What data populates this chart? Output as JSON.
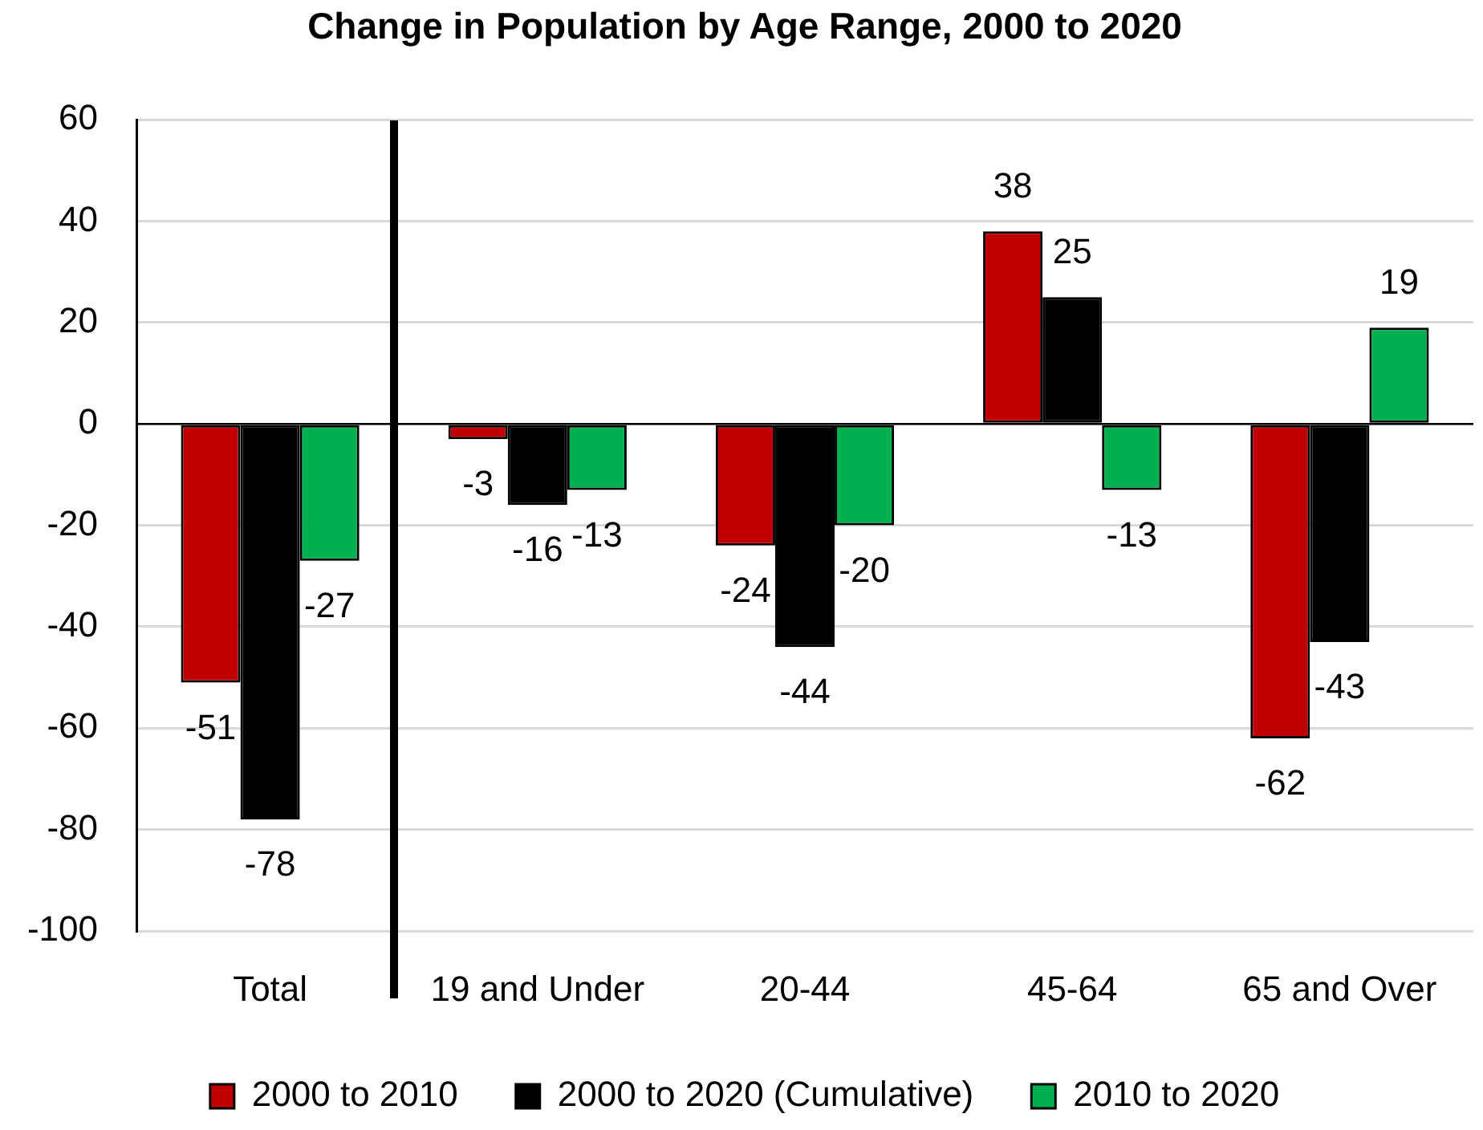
{
  "chart_data": {
    "type": "bar",
    "title": "Change in Population by Age Range, 2000 to 2020",
    "categories": [
      "Total",
      "19 and Under",
      "20-44",
      "45-64",
      "65 and Over"
    ],
    "series": [
      {
        "name": "2000 to 2010",
        "color": "#c00000",
        "values": [
          -51,
          -3,
          -24,
          38,
          -62
        ]
      },
      {
        "name": "2000 to 2020 (Cumulative)",
        "color": "#000000",
        "values": [
          -78,
          -16,
          -44,
          25,
          -43
        ]
      },
      {
        "name": "2010 to 2020",
        "color": "#00b050",
        "values": [
          -27,
          -13,
          -20,
          -13,
          19
        ]
      }
    ],
    "ylim": [
      -100,
      60
    ],
    "yticks": [
      -100,
      -80,
      -60,
      -40,
      -20,
      0,
      20,
      40,
      60
    ],
    "grid": "y",
    "legend": "bottom",
    "data_labels": true
  }
}
